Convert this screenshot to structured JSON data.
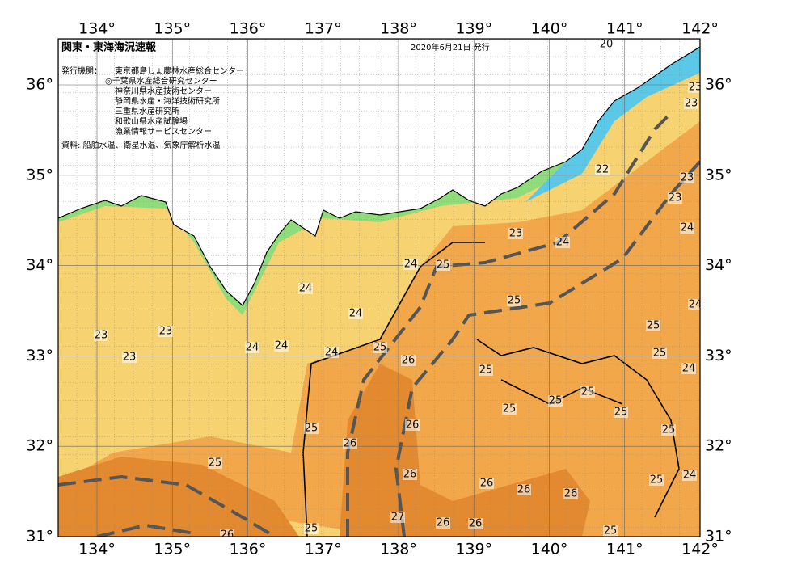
{
  "header": {
    "title": "関東・東海海況速報",
    "date": "2020年6月21日 発行",
    "issuer_label": "発行機関：",
    "agencies": [
      "東京都島しょ農林水産総合センター",
      "◎千葉県水産総合研究センター",
      "神奈川県水産技術センター",
      "静岡県水産・海洋技術研究所",
      "三重県水産研究所",
      "和歌山県水産試験場",
      "漁業情報サービスセンター"
    ],
    "source": "資料: 船舶水温、衛星水温、気象庁解析水温"
  },
  "map": {
    "lon_ticks": [
      {
        "value": 134,
        "label": "134°"
      },
      {
        "value": 135,
        "label": "135°"
      },
      {
        "value": 136,
        "label": "136°"
      },
      {
        "value": 137,
        "label": "137°"
      },
      {
        "value": 138,
        "label": "138°"
      },
      {
        "value": 139,
        "label": "139°"
      },
      {
        "value": 140,
        "label": "140°"
      },
      {
        "value": 141,
        "label": "141°"
      },
      {
        "value": 142,
        "label": "142°"
      }
    ],
    "lat_ticks": [
      {
        "value": 36,
        "label": "36°"
      },
      {
        "value": 35,
        "label": "35°"
      },
      {
        "value": 34,
        "label": "34°"
      },
      {
        "value": 33,
        "label": "33°"
      },
      {
        "value": 32,
        "label": "32°"
      },
      {
        "value": 31,
        "label": "31°"
      }
    ],
    "contour_labels": [
      "20",
      "23",
      "23",
      "22",
      "23",
      "23",
      "24",
      "23",
      "24",
      "24",
      "25",
      "24",
      "25",
      "24",
      "23",
      "23",
      "25",
      "24",
      "23",
      "24",
      "24",
      "24",
      "25",
      "25",
      "26",
      "25",
      "24",
      "25",
      "25",
      "25",
      "25",
      "25",
      "26",
      "25",
      "26",
      "25",
      "26",
      "26",
      "26",
      "26",
      "25",
      "24",
      "27",
      "26",
      "26",
      "25",
      "26",
      "25"
    ]
  }
}
